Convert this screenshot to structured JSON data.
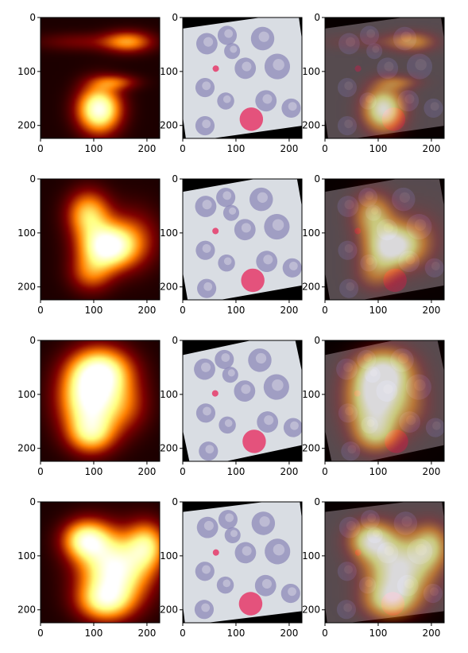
{
  "figure": {
    "layout": {
      "rows": 4,
      "columns": 3
    },
    "colormap": "afmhot",
    "background": "#ffffff"
  },
  "chart_data": {
    "type": "heatmap",
    "grid_rows": 4,
    "grid_cols": 3,
    "panel_kinds_per_column": [
      "heatmap",
      "image",
      "overlay"
    ],
    "xlim": [
      0,
      224
    ],
    "ylim": [
      224,
      0
    ],
    "xticks": [
      0,
      100,
      200
    ],
    "yticks": [
      0,
      100,
      200
    ],
    "tick_labels": {
      "x": [
        "0",
        "100",
        "200"
      ],
      "y": [
        "0",
        "100",
        "200"
      ]
    },
    "grid": false,
    "image_rotation_deg": [
      -8,
      -10,
      -12,
      -7
    ],
    "heatmap_blobs": [
      [
        {
          "x": 110,
          "y": 170,
          "sx": 28,
          "sy": 30,
          "a": 1.0
        },
        {
          "x": 165,
          "y": 45,
          "sx": 32,
          "sy": 14,
          "a": 0.5
        },
        {
          "x": 140,
          "y": 120,
          "sx": 30,
          "sy": 10,
          "a": 0.35
        },
        {
          "x": 75,
          "y": 45,
          "sx": 60,
          "sy": 12,
          "a": 0.18
        }
      ],
      [
        {
          "x": 125,
          "y": 125,
          "sx": 35,
          "sy": 28,
          "a": 1.0
        },
        {
          "x": 90,
          "y": 65,
          "sx": 28,
          "sy": 30,
          "a": 0.65
        },
        {
          "x": 95,
          "y": 175,
          "sx": 28,
          "sy": 25,
          "a": 0.4
        },
        {
          "x": 175,
          "y": 110,
          "sx": 35,
          "sy": 40,
          "a": 0.3
        }
      ],
      [
        {
          "x": 95,
          "y": 110,
          "sx": 40,
          "sy": 45,
          "a": 1.0
        },
        {
          "x": 115,
          "y": 55,
          "sx": 40,
          "sy": 30,
          "a": 0.7
        },
        {
          "x": 95,
          "y": 175,
          "sx": 30,
          "sy": 25,
          "a": 0.5
        },
        {
          "x": 165,
          "y": 120,
          "sx": 30,
          "sy": 35,
          "a": 0.25
        }
      ],
      [
        {
          "x": 140,
          "y": 125,
          "sx": 45,
          "sy": 45,
          "a": 1.0
        },
        {
          "x": 85,
          "y": 70,
          "sx": 30,
          "sy": 25,
          "a": 0.8
        },
        {
          "x": 200,
          "y": 80,
          "sx": 25,
          "sy": 30,
          "a": 0.6
        },
        {
          "x": 120,
          "y": 185,
          "sx": 35,
          "sy": 25,
          "a": 0.6
        }
      ]
    ],
    "cells": [
      {
        "x": 55,
        "y": 40,
        "r": 20
      },
      {
        "x": 95,
        "y": 30,
        "r": 18
      },
      {
        "x": 160,
        "y": 45,
        "r": 22
      },
      {
        "x": 40,
        "y": 120,
        "r": 18
      },
      {
        "x": 120,
        "y": 95,
        "r": 20
      },
      {
        "x": 180,
        "y": 100,
        "r": 24
      },
      {
        "x": 75,
        "y": 150,
        "r": 16
      },
      {
        "x": 150,
        "y": 160,
        "r": 20
      },
      {
        "x": 195,
        "y": 180,
        "r": 18
      },
      {
        "x": 30,
        "y": 190,
        "r": 18
      },
      {
        "x": 100,
        "y": 60,
        "r": 15
      }
    ],
    "red_cells": [
      {
        "x": 118,
        "y": 190,
        "r": 22
      },
      {
        "x": 65,
        "y": 88,
        "r": 6
      }
    ],
    "colors": {
      "slide": "#d9dde3",
      "cell": "#8c88b8",
      "red_cell": "#e53a6a",
      "corner": "#000000"
    }
  }
}
